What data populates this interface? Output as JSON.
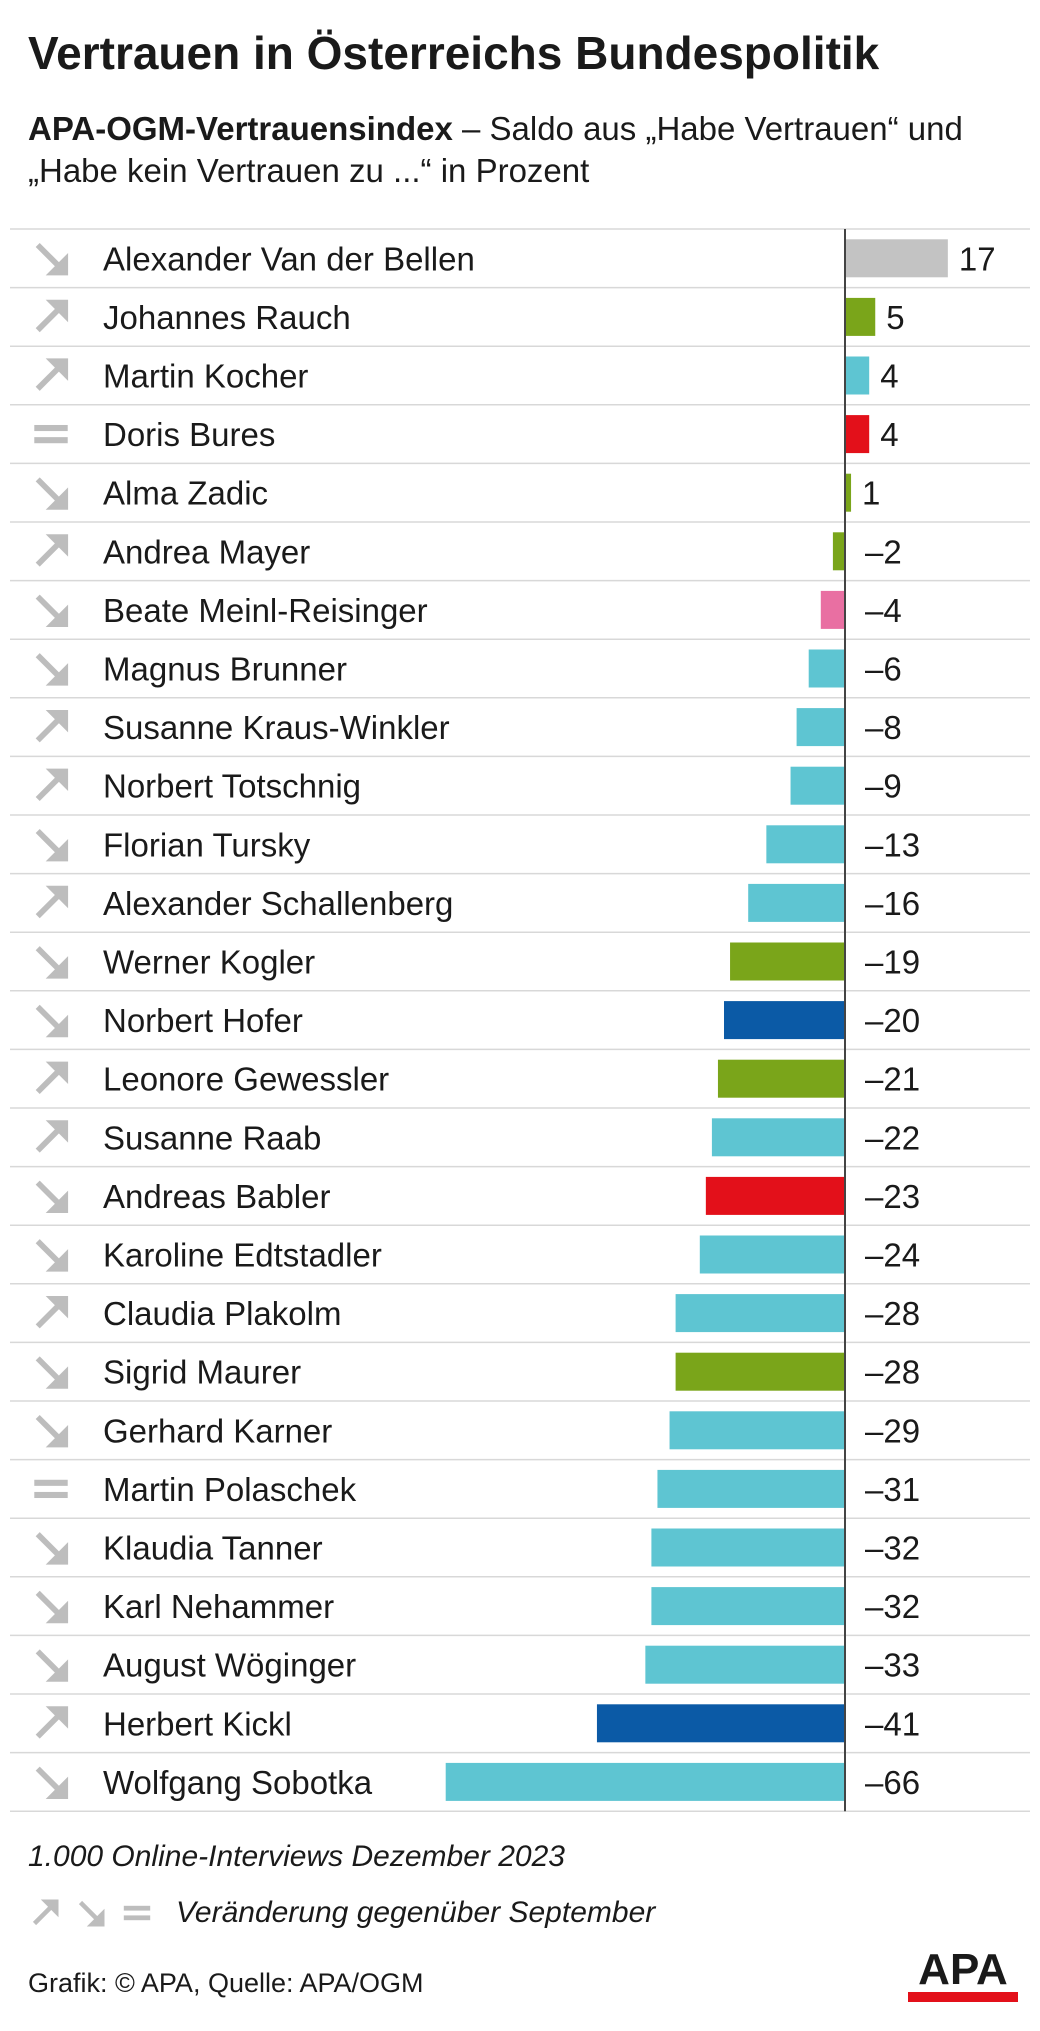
{
  "header": {
    "title": "Vertrauen in Österreichs Bundespolitik",
    "subtitle_bold": "APA-OGM-Vertrauensindex",
    "subtitle_rest": "– Saldo aus „Habe Vertrauen“ und „Habe kein Vertrauen zu ...“ in Prozent"
  },
  "chart_data": {
    "type": "bar",
    "orientation": "horizontal",
    "title": "Vertrauen in Österreichs Bundespolitik",
    "subtitle": "APA-OGM-Vertrauensindex – Saldo aus „Habe Vertrauen“ und „Habe kein Vertrauen zu ...“ in Prozent",
    "xlim": [
      -66,
      17
    ],
    "grid": false,
    "categories": [
      "Alexander Van der Bellen",
      "Johannes Rauch",
      "Martin Kocher",
      "Doris Bures",
      "Alma Zadic",
      "Andrea Mayer",
      "Beate Meinl-Reisinger",
      "Magnus Brunner",
      "Susanne Kraus-Winkler",
      "Norbert Totschnig",
      "Florian Tursky",
      "Alexander Schallenberg",
      "Werner Kogler",
      "Norbert Hofer",
      "Leonore Gewessler",
      "Susanne Raab",
      "Andreas Babler",
      "Karoline Edtstadler",
      "Claudia Plakolm",
      "Sigrid Maurer",
      "Gerhard Karner",
      "Martin Polaschek",
      "Klaudia Tanner",
      "Karl Nehammer",
      "August Wöginger",
      "Herbert Kickl",
      "Wolfgang Sobotka"
    ],
    "values": [
      17,
      5,
      4,
      4,
      1,
      -2,
      -4,
      -6,
      -8,
      -9,
      -13,
      -16,
      -19,
      -20,
      -21,
      -22,
      -23,
      -24,
      -28,
      -28,
      -29,
      -31,
      -32,
      -32,
      -33,
      -41,
      -66
    ],
    "value_labels": [
      "17",
      "5",
      "4",
      "4",
      "1",
      "–2",
      "–4",
      "–6",
      "–8",
      "–9",
      "–13",
      "–16",
      "–19",
      "–20",
      "–21",
      "–22",
      "–23",
      "–24",
      "–28",
      "–28",
      "–29",
      "–31",
      "–32",
      "–32",
      "–33",
      "–41",
      "–66"
    ],
    "colors": [
      "#c3c3c3",
      "#7aa51a",
      "#5ec5d2",
      "#e3101a",
      "#7aa51a",
      "#7aa51a",
      "#e96fa2",
      "#5ec5d2",
      "#5ec5d2",
      "#5ec5d2",
      "#5ec5d2",
      "#5ec5d2",
      "#7aa51a",
      "#0b5aa6",
      "#7aa51a",
      "#5ec5d2",
      "#e3101a",
      "#5ec5d2",
      "#5ec5d2",
      "#7aa51a",
      "#5ec5d2",
      "#5ec5d2",
      "#5ec5d2",
      "#5ec5d2",
      "#5ec5d2",
      "#0b5aa6",
      "#5ec5d2"
    ],
    "trend": [
      "down",
      "up",
      "up",
      "same",
      "down",
      "up",
      "down",
      "down",
      "up",
      "up",
      "down",
      "up",
      "down",
      "down",
      "up",
      "up",
      "down",
      "down",
      "up",
      "down",
      "down",
      "same",
      "down",
      "down",
      "down",
      "up",
      "down"
    ]
  },
  "footer": {
    "note": "1.000 Online-Interviews Dezember 2023",
    "legend_label": "Veränderung gegenüber September",
    "legend_icons": [
      "arrow-up-icon",
      "arrow-down-icon",
      "equals-icon"
    ],
    "source": "Grafik: © APA, Quelle: APA/OGM",
    "logo_text": "APA"
  },
  "colors": {
    "text": "#1a1a1a",
    "trend_icon": "#bdbdbd",
    "row_divider": "#d8d8d8",
    "axis": "#444444",
    "logo": "#1a1a1a",
    "logo_accent": "#e3101a"
  }
}
